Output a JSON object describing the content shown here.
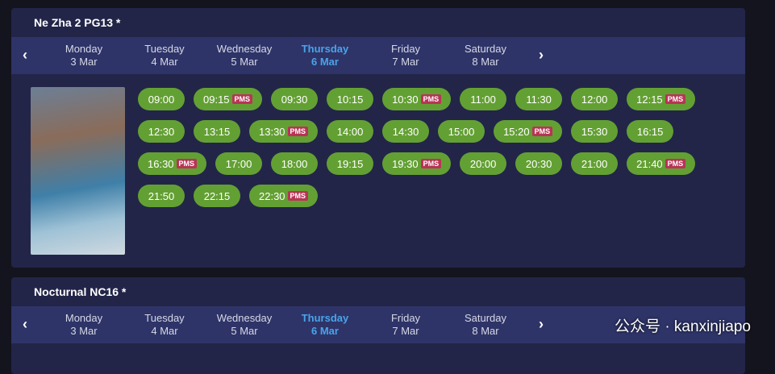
{
  "movies": [
    {
      "title": "Ne Zha 2 PG13 *",
      "dates": [
        {
          "day": "Monday",
          "date": "3 Mar"
        },
        {
          "day": "Tuesday",
          "date": "4 Mar"
        },
        {
          "day": "Wednesday",
          "date": "5 Mar"
        },
        {
          "day": "Thursday",
          "date": "6 Mar",
          "selected": true
        },
        {
          "day": "Friday",
          "date": "7 Mar"
        },
        {
          "day": "Saturday",
          "date": "8 Mar"
        }
      ],
      "showtimes": [
        {
          "time": "09:00"
        },
        {
          "time": "09:15",
          "tag": "PMS"
        },
        {
          "time": "09:30"
        },
        {
          "time": "10:15"
        },
        {
          "time": "10:30",
          "tag": "PMS"
        },
        {
          "time": "11:00"
        },
        {
          "time": "11:30"
        },
        {
          "time": "12:00"
        },
        {
          "time": "12:15",
          "tag": "PMS"
        },
        {
          "time": "12:30"
        },
        {
          "time": "13:15"
        },
        {
          "time": "13:30",
          "tag": "PMS"
        },
        {
          "time": "14:00"
        },
        {
          "time": "14:30"
        },
        {
          "time": "15:00"
        },
        {
          "time": "15:20",
          "tag": "PMS"
        },
        {
          "time": "15:30"
        },
        {
          "time": "16:15"
        },
        {
          "time": "16:30",
          "tag": "PMS"
        },
        {
          "time": "17:00"
        },
        {
          "time": "18:00"
        },
        {
          "time": "19:15"
        },
        {
          "time": "19:30",
          "tag": "PMS"
        },
        {
          "time": "20:00"
        },
        {
          "time": "20:30"
        },
        {
          "time": "21:00"
        },
        {
          "time": "21:40",
          "tag": "PMS"
        },
        {
          "time": "21:50"
        },
        {
          "time": "22:15"
        },
        {
          "time": "22:30",
          "tag": "PMS"
        }
      ]
    },
    {
      "title": "Nocturnal NC16 *",
      "dates": [
        {
          "day": "Monday",
          "date": "3 Mar"
        },
        {
          "day": "Tuesday",
          "date": "4 Mar"
        },
        {
          "day": "Wednesday",
          "date": "5 Mar"
        },
        {
          "day": "Thursday",
          "date": "6 Mar",
          "selected": true
        },
        {
          "day": "Friday",
          "date": "7 Mar"
        },
        {
          "day": "Saturday",
          "date": "8 Mar"
        }
      ],
      "showtimes": []
    }
  ],
  "watermark": "公众号 · kanxinjiapo"
}
